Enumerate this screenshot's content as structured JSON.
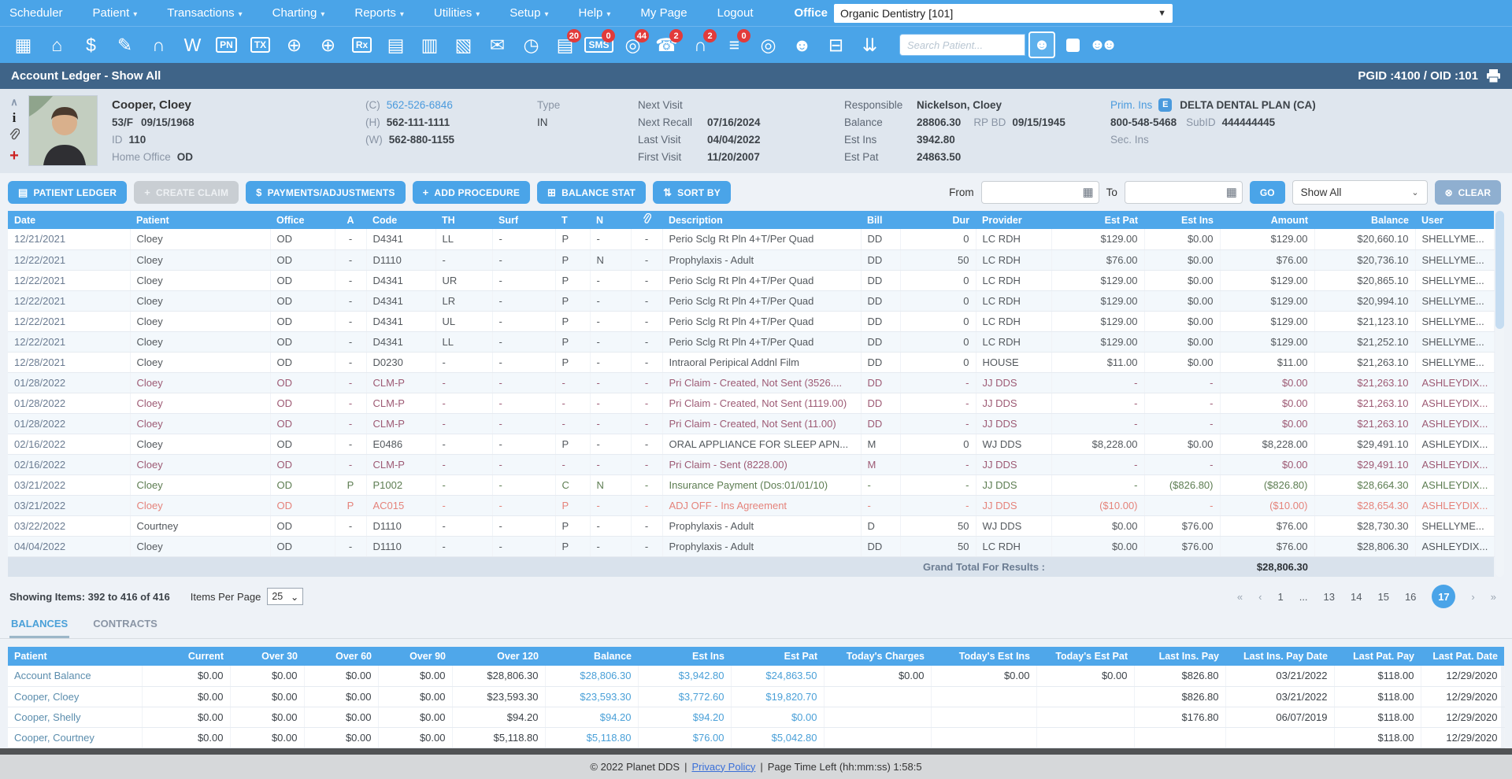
{
  "colors": {
    "accent": "#4aa4e8",
    "titlebar": "#3f6488",
    "claim_text": "#9d5a74",
    "payment_text": "#5d7d52",
    "adjustment_text": "#e5837b",
    "link": "#4a9add",
    "badge": "#e23b3b"
  },
  "nav": {
    "items": [
      {
        "label": "Scheduler",
        "caret": false
      },
      {
        "label": "Patient",
        "caret": true
      },
      {
        "label": "Transactions",
        "caret": true
      },
      {
        "label": "Charting",
        "caret": true
      },
      {
        "label": "Reports",
        "caret": true
      },
      {
        "label": "Utilities",
        "caret": true
      },
      {
        "label": "Setup",
        "caret": true
      },
      {
        "label": "Help",
        "caret": true
      },
      {
        "label": "My Page",
        "caret": false
      },
      {
        "label": "Logout",
        "caret": false
      }
    ],
    "office_label": "Office",
    "office_value": "Organic Dentistry [101]"
  },
  "toolbar": {
    "icons": [
      {
        "name": "calendar",
        "glyph": "▦"
      },
      {
        "name": "home",
        "glyph": "⌂"
      },
      {
        "name": "payments",
        "glyph": "$"
      },
      {
        "name": "schedule-notes",
        "glyph": "✎"
      },
      {
        "name": "tooth-chart",
        "glyph": "∩"
      },
      {
        "name": "tooth-w",
        "glyph": "W"
      },
      {
        "name": "pn-calendar",
        "glyph": "PN"
      },
      {
        "name": "tx-calendar",
        "glyph": "TX"
      },
      {
        "name": "add-patient",
        "glyph": "⊕"
      },
      {
        "name": "add-referral",
        "glyph": "⊕"
      },
      {
        "name": "prescriptions",
        "glyph": "Rx"
      },
      {
        "name": "messages",
        "glyph": "▤"
      },
      {
        "name": "documents",
        "glyph": "▥"
      },
      {
        "name": "fax",
        "glyph": "▧"
      },
      {
        "name": "mail",
        "glyph": "✉"
      },
      {
        "name": "time-clock",
        "glyph": "◷"
      },
      {
        "name": "notes",
        "glyph": "▤",
        "badge": "20"
      },
      {
        "name": "sms",
        "glyph": "SMS",
        "badge": "0"
      },
      {
        "name": "web-notifications",
        "glyph": "◎",
        "badge": "44"
      },
      {
        "name": "support",
        "glyph": "☎",
        "badge": "2"
      },
      {
        "name": "tooth-alerts",
        "glyph": "∩",
        "badge": "2"
      },
      {
        "name": "task-list",
        "glyph": "≡",
        "badge": "0"
      },
      {
        "name": "web-access",
        "glyph": "◎"
      },
      {
        "name": "staff",
        "glyph": "☻"
      },
      {
        "name": "print-queue",
        "glyph": "⊟"
      },
      {
        "name": "collapse-toolbar",
        "glyph": "⇊"
      }
    ],
    "search_placeholder": "Search Patient...",
    "search_button_icon": "person-icon",
    "group_icon": "☻☻"
  },
  "header": {
    "title": "Account Ledger - Show All",
    "pgid_oid": "PGID :4100  /  OID :101"
  },
  "patient": {
    "name": "Cooper, Cloey",
    "age_sex": "53/F",
    "dob": "09/15/1968",
    "id_label": "ID",
    "id": "110",
    "home_office_label": "Home Office",
    "home_office": "OD",
    "phones": [
      {
        "label": "(C)",
        "number": "562-526-6846"
      },
      {
        "label": "(H)",
        "number": "562-111-1111"
      },
      {
        "label": "(W)",
        "number": "562-880-1155"
      }
    ],
    "type_label": "Type",
    "type": "IN",
    "visits": [
      {
        "label": "Next Visit",
        "value": ""
      },
      {
        "label": "Next Recall",
        "value": "07/16/2024"
      },
      {
        "label": "Last Visit",
        "value": "04/04/2022"
      },
      {
        "label": "First Visit",
        "value": "11/20/2007"
      }
    ],
    "responsible_label": "Responsible",
    "responsible": "Nickelson, Cloey",
    "balance_label": "Balance",
    "balance": "28806.30",
    "rp_bd_label": "RP BD",
    "rp_bd": "09/15/1945",
    "est_ins_label": "Est Ins",
    "est_ins": "3942.80",
    "est_pat_label": "Est Pat",
    "est_pat": "24863.50",
    "prim_ins_label": "Prim. Ins",
    "elig_icon": "E",
    "carrier": "DELTA DENTAL PLAN (CA)",
    "carrier_phone": "800-548-5468",
    "subid_label": "SubID",
    "subid": "444444445",
    "sec_ins_label": "Sec. Ins"
  },
  "actions": {
    "buttons": [
      {
        "name": "patient-ledger",
        "label": "PATIENT LEDGER",
        "icon": "▤",
        "disabled": false
      },
      {
        "name": "create-claim",
        "label": "CREATE CLAIM",
        "icon": "+",
        "disabled": true
      },
      {
        "name": "payments-adjustments",
        "label": "PAYMENTS/ADJUSTMENTS",
        "icon": "$",
        "disabled": false
      },
      {
        "name": "add-procedure",
        "label": "ADD PROCEDURE",
        "icon": "+",
        "disabled": false
      },
      {
        "name": "balance-stat",
        "label": "BALANCE STAT",
        "icon": "⊞",
        "disabled": false
      },
      {
        "name": "sort-by",
        "label": "SORT BY",
        "icon": "⇅",
        "disabled": false
      }
    ],
    "from_label": "From",
    "to_label": "To",
    "go_label": "GO",
    "filter_value": "Show All",
    "clear_label": "CLEAR",
    "clear_icon": "⊗"
  },
  "ledger": {
    "columns": [
      "Date",
      "Patient",
      "Office",
      "A",
      "Code",
      "TH",
      "Surf",
      "T",
      "N",
      "",
      "Description",
      "Bill",
      "Dur",
      "Provider",
      "Est Pat",
      "Est Ins",
      "Amount",
      "Balance",
      "User"
    ],
    "attachment_icon": "paperclip-icon",
    "rows": [
      {
        "style": "normal",
        "cells": [
          "12/21/2021",
          "Cloey",
          "OD",
          "-",
          "D4341",
          "LL",
          "-",
          "P",
          "-",
          "-",
          "Perio Sclg Rt Pln 4+T/Per Quad",
          "DD",
          "0",
          "LC RDH",
          "$129.00",
          "$0.00",
          "$129.00",
          "$20,660.10",
          "SHELLYME..."
        ]
      },
      {
        "style": "normal",
        "cells": [
          "12/22/2021",
          "Cloey",
          "OD",
          "-",
          "D1110",
          "-",
          "-",
          "P",
          "N",
          "-",
          "Prophylaxis - Adult",
          "DD",
          "50",
          "LC RDH",
          "$76.00",
          "$0.00",
          "$76.00",
          "$20,736.10",
          "SHELLYME..."
        ]
      },
      {
        "style": "normal",
        "cells": [
          "12/22/2021",
          "Cloey",
          "OD",
          "-",
          "D4341",
          "UR",
          "-",
          "P",
          "-",
          "-",
          "Perio Sclg Rt Pln 4+T/Per Quad",
          "DD",
          "0",
          "LC RDH",
          "$129.00",
          "$0.00",
          "$129.00",
          "$20,865.10",
          "SHELLYME..."
        ]
      },
      {
        "style": "normal",
        "cells": [
          "12/22/2021",
          "Cloey",
          "OD",
          "-",
          "D4341",
          "LR",
          "-",
          "P",
          "-",
          "-",
          "Perio Sclg Rt Pln 4+T/Per Quad",
          "DD",
          "0",
          "LC RDH",
          "$129.00",
          "$0.00",
          "$129.00",
          "$20,994.10",
          "SHELLYME..."
        ]
      },
      {
        "style": "normal",
        "cells": [
          "12/22/2021",
          "Cloey",
          "OD",
          "-",
          "D4341",
          "UL",
          "-",
          "P",
          "-",
          "-",
          "Perio Sclg Rt Pln 4+T/Per Quad",
          "DD",
          "0",
          "LC RDH",
          "$129.00",
          "$0.00",
          "$129.00",
          "$21,123.10",
          "SHELLYME..."
        ]
      },
      {
        "style": "normal",
        "cells": [
          "12/22/2021",
          "Cloey",
          "OD",
          "-",
          "D4341",
          "LL",
          "-",
          "P",
          "-",
          "-",
          "Perio Sclg Rt Pln 4+T/Per Quad",
          "DD",
          "0",
          "LC RDH",
          "$129.00",
          "$0.00",
          "$129.00",
          "$21,252.10",
          "SHELLYME..."
        ]
      },
      {
        "style": "normal",
        "cells": [
          "12/28/2021",
          "Cloey",
          "OD",
          "-",
          "D0230",
          "-",
          "-",
          "P",
          "-",
          "-",
          "Intraoral Peripical Addnl Film",
          "DD",
          "0",
          "HOUSE",
          "$11.00",
          "$0.00",
          "$11.00",
          "$21,263.10",
          "SHELLYME..."
        ]
      },
      {
        "style": "claim",
        "cells": [
          "01/28/2022",
          "Cloey",
          "OD",
          "-",
          "CLM-P",
          "-",
          "-",
          "-",
          "-",
          "-",
          "Pri Claim - Created, Not Sent (3526....",
          "DD",
          "-",
          "JJ DDS",
          "-",
          "-",
          "$0.00",
          "$21,263.10",
          "ASHLEYDIX..."
        ]
      },
      {
        "style": "claim",
        "cells": [
          "01/28/2022",
          "Cloey",
          "OD",
          "-",
          "CLM-P",
          "-",
          "-",
          "-",
          "-",
          "-",
          "Pri Claim - Created, Not Sent (1119.00)",
          "DD",
          "-",
          "JJ DDS",
          "-",
          "-",
          "$0.00",
          "$21,263.10",
          "ASHLEYDIX..."
        ]
      },
      {
        "style": "claim",
        "cells": [
          "01/28/2022",
          "Cloey",
          "OD",
          "-",
          "CLM-P",
          "-",
          "-",
          "-",
          "-",
          "-",
          "Pri Claim - Created, Not Sent (11.00)",
          "DD",
          "-",
          "JJ DDS",
          "-",
          "-",
          "$0.00",
          "$21,263.10",
          "ASHLEYDIX..."
        ]
      },
      {
        "style": "normal",
        "cells": [
          "02/16/2022",
          "Cloey",
          "OD",
          "-",
          "E0486",
          "-",
          "-",
          "P",
          "-",
          "-",
          "ORAL APPLIANCE FOR SLEEP APN...",
          "M",
          "0",
          "WJ DDS",
          "$8,228.00",
          "$0.00",
          "$8,228.00",
          "$29,491.10",
          "ASHLEYDIX..."
        ]
      },
      {
        "style": "claim",
        "cells": [
          "02/16/2022",
          "Cloey",
          "OD",
          "-",
          "CLM-P",
          "-",
          "-",
          "-",
          "-",
          "-",
          "Pri Claim - Sent (8228.00)",
          "M",
          "-",
          "JJ DDS",
          "-",
          "-",
          "$0.00",
          "$29,491.10",
          "ASHLEYDIX..."
        ]
      },
      {
        "style": "payment",
        "cells": [
          "03/21/2022",
          "Cloey",
          "OD",
          "P",
          "P1002",
          "-",
          "-",
          "C",
          "N",
          "-",
          "Insurance Payment (Dos:01/01/10)",
          "-",
          "-",
          "JJ DDS",
          "-",
          "($826.80)",
          "($826.80)",
          "$28,664.30",
          "ASHLEYDIX..."
        ]
      },
      {
        "style": "adjust",
        "cells": [
          "03/21/2022",
          "Cloey",
          "OD",
          "P",
          "AC015",
          "-",
          "-",
          "P",
          "-",
          "-",
          "ADJ OFF - Ins Agreement",
          "-",
          "-",
          "JJ DDS",
          "($10.00)",
          "-",
          "($10.00)",
          "$28,654.30",
          "ASHLEYDIX..."
        ]
      },
      {
        "style": "normal",
        "cells": [
          "03/22/2022",
          "Courtney",
          "OD",
          "-",
          "D1110",
          "-",
          "-",
          "P",
          "-",
          "-",
          "Prophylaxis - Adult",
          "D",
          "50",
          "WJ DDS",
          "$0.00",
          "$76.00",
          "$76.00",
          "$28,730.30",
          "SHELLYME..."
        ]
      },
      {
        "style": "normal",
        "cells": [
          "04/04/2022",
          "Cloey",
          "OD",
          "-",
          "D1110",
          "-",
          "-",
          "P",
          "-",
          "-",
          "Prophylaxis - Adult",
          "DD",
          "50",
          "LC RDH",
          "$0.00",
          "$76.00",
          "$76.00",
          "$28,806.30",
          "ASHLEYDIX..."
        ]
      }
    ],
    "grand_total_label": "Grand Total For Results :",
    "grand_total_value": "$28,806.30"
  },
  "paging": {
    "showing": "Showing Items: 392 to 416 of 416",
    "per_page_label": "Items Per Page",
    "per_page_value": "25",
    "pages": [
      "«",
      "‹",
      "1",
      "...",
      "13",
      "14",
      "15",
      "16",
      "17",
      "›",
      "»"
    ],
    "active": "17"
  },
  "tabs": [
    {
      "label": "BALANCES",
      "active": true
    },
    {
      "label": "CONTRACTS",
      "active": false
    }
  ],
  "balances": {
    "columns": [
      "Patient",
      "Current",
      "Over 30",
      "Over 60",
      "Over 90",
      "Over 120",
      "Balance",
      "Est Ins",
      "Est Pat",
      "Today's Charges",
      "Today's Est Ins",
      "Today's Est Pat",
      "Last Ins. Pay",
      "Last Ins. Pay Date",
      "Last Pat. Pay",
      "Last Pat. Date"
    ],
    "rows": [
      [
        "Account Balance",
        "$0.00",
        "$0.00",
        "$0.00",
        "$0.00",
        "$28,806.30",
        "$28,806.30",
        "$3,942.80",
        "$24,863.50",
        "$0.00",
        "$0.00",
        "$0.00",
        "$826.80",
        "03/21/2022",
        "$118.00",
        "12/29/2020"
      ],
      [
        "Cooper, Cloey",
        "$0.00",
        "$0.00",
        "$0.00",
        "$0.00",
        "$23,593.30",
        "$23,593.30",
        "$3,772.60",
        "$19,820.70",
        "",
        "",
        "",
        "$826.80",
        "03/21/2022",
        "$118.00",
        "12/29/2020"
      ],
      [
        "Cooper, Shelly",
        "$0.00",
        "$0.00",
        "$0.00",
        "$0.00",
        "$94.20",
        "$94.20",
        "$94.20",
        "$0.00",
        "",
        "",
        "",
        "$176.80",
        "06/07/2019",
        "$118.00",
        "12/29/2020"
      ],
      [
        "Cooper, Courtney",
        "$0.00",
        "$0.00",
        "$0.00",
        "$0.00",
        "$5,118.80",
        "$5,118.80",
        "$76.00",
        "$5,042.80",
        "",
        "",
        "",
        "",
        "",
        "$118.00",
        "12/29/2020"
      ]
    ]
  },
  "footer": {
    "copyright": "© 2022 Planet DDS",
    "sep1": "|",
    "privacy": "Privacy Policy",
    "sep2": "|",
    "time_left": "Page Time Left (hh:mm:ss) 1:58:5"
  }
}
